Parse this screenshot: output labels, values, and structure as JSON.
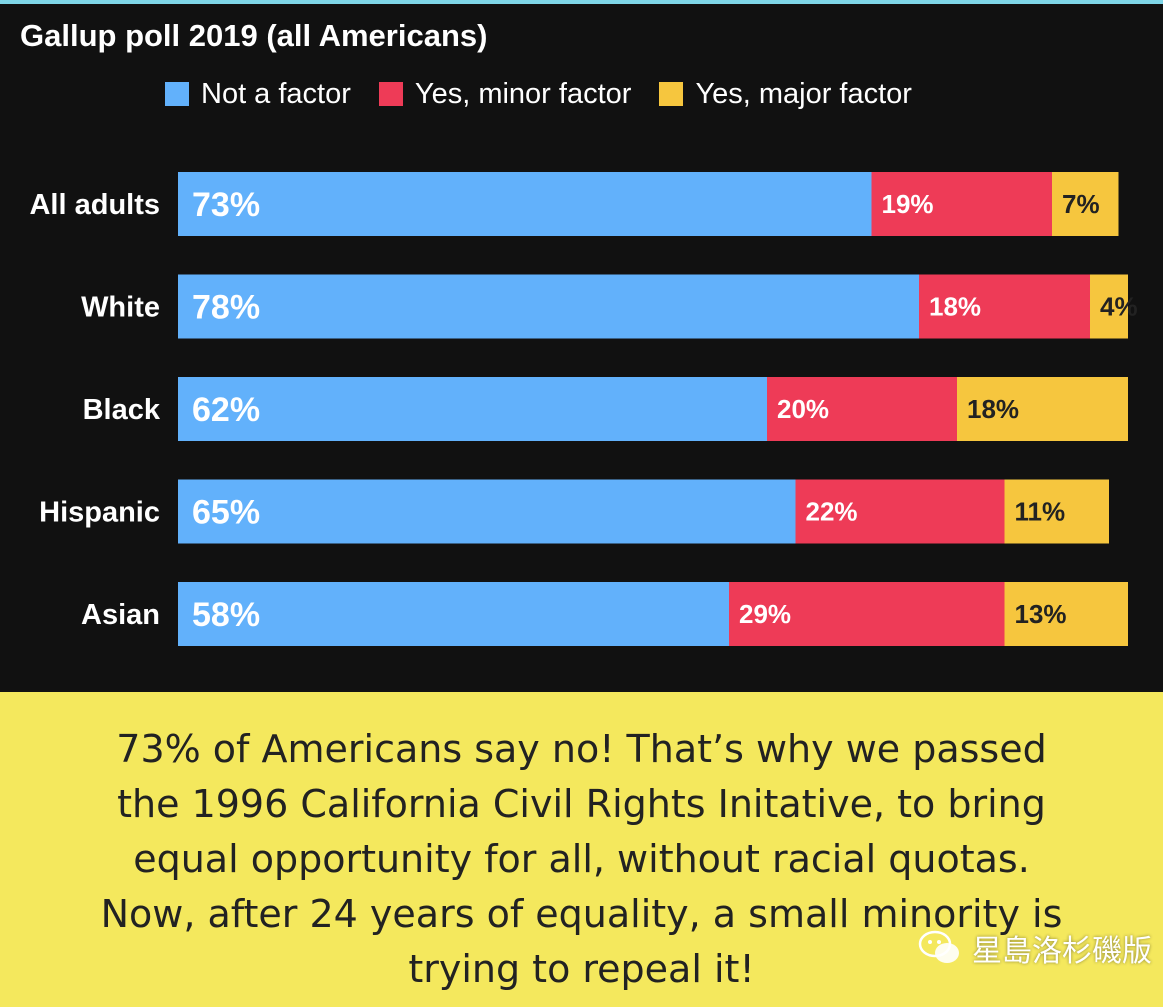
{
  "chart_data": {
    "type": "bar",
    "orientation": "horizontal",
    "stacked": true,
    "title": "Gallup poll 2019 (all Americans)",
    "categories": [
      "All adults",
      "White",
      "Black",
      "Hispanic",
      "Asian"
    ],
    "series": [
      {
        "name": "Not a factor",
        "color": "#62b1fb",
        "values": [
          73,
          78,
          62,
          65,
          58
        ]
      },
      {
        "name": "Yes, minor factor",
        "color": "#ee3b57",
        "values": [
          19,
          18,
          20,
          22,
          29
        ]
      },
      {
        "name": "Yes, major factor",
        "color": "#f6c63e",
        "values": [
          7,
          4,
          18,
          11,
          13
        ]
      }
    ],
    "value_suffix": "%",
    "xlim": [
      0,
      100
    ],
    "grid": false,
    "legend_position": "top"
  },
  "caption": {
    "lines": [
      "73% of Americans say no! That’s why we passed",
      "the 1996 California Civil Rights Initative, to bring",
      "equal opportunity for all, without racial quotas.",
      "Now, after 24 years of equality, a small minority is",
      "trying to repeal it!"
    ]
  },
  "watermark": {
    "text": "星島洛杉磯版",
    "icon": "wechat-icon"
  },
  "colors": {
    "panel_background": "#111111",
    "caption_background": "#f4e85d"
  }
}
